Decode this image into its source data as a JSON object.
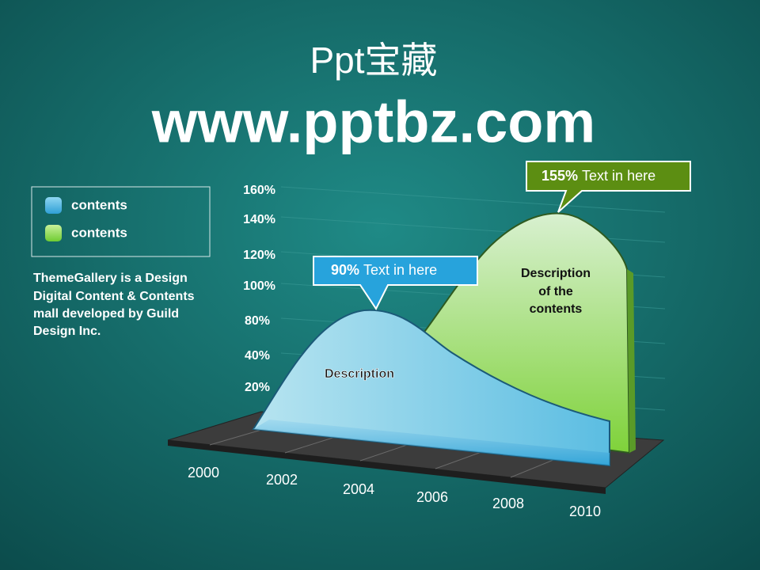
{
  "header": {
    "title": "Ppt宝藏",
    "url": "www.pptbz.com"
  },
  "legend": {
    "items": [
      "contents",
      "contents"
    ]
  },
  "description": [
    "ThemeGallery is a Design",
    "Digital Content & Contents",
    "mall developed by Guild",
    "Design Inc."
  ],
  "y_labels": [
    "160%",
    "140%",
    "120%",
    "100%",
    "80%",
    "40%",
    "20%"
  ],
  "x_labels": [
    "2000",
    "2002",
    "2004",
    "2006",
    "2008",
    "2010"
  ],
  "callouts": [
    {
      "bold": "90%",
      "text": "Text in here"
    },
    {
      "bold": "155%",
      "text": "Text in here"
    }
  ],
  "area_labels": {
    "blue": [
      "Description"
    ],
    "green": [
      "Description",
      "of the",
      "contents"
    ]
  }
}
